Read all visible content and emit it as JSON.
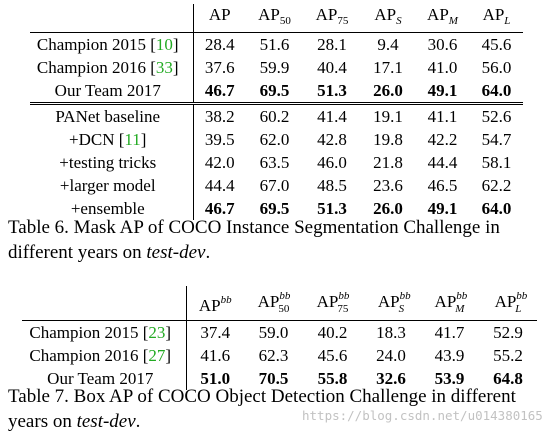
{
  "table6": {
    "columns": [
      "AP",
      "AP",
      "AP",
      "AP",
      "AP",
      "AP"
    ],
    "column_subscripts": [
      "",
      "50",
      "75",
      "S",
      "M",
      "L"
    ],
    "rows": [
      {
        "label": "Champion 2015 [",
        "ref": "10",
        "close": "]",
        "values": [
          "28.4",
          "51.6",
          "28.1",
          "9.4",
          "30.6",
          "45.6"
        ]
      },
      {
        "label": "Champion 2016 [",
        "ref": "33",
        "close": "]",
        "values": [
          "37.6",
          "59.9",
          "40.4",
          "17.1",
          "41.0",
          "56.0"
        ]
      },
      {
        "label": "Our Team 2017",
        "ref": "",
        "close": "",
        "values": [
          "46.7",
          "69.5",
          "51.3",
          "26.0",
          "49.1",
          "64.0"
        ]
      },
      {
        "label": "PANet baseline",
        "ref": "",
        "close": "",
        "values": [
          "38.2",
          "60.2",
          "41.4",
          "19.1",
          "41.1",
          "52.6"
        ]
      },
      {
        "label": "+DCN [",
        "ref": "11",
        "close": "]",
        "values": [
          "39.5",
          "62.0",
          "42.8",
          "19.8",
          "42.2",
          "54.7"
        ]
      },
      {
        "label": "+testing tricks",
        "ref": "",
        "close": "",
        "values": [
          "42.0",
          "63.5",
          "46.0",
          "21.8",
          "44.4",
          "58.1"
        ]
      },
      {
        "label": "+larger model",
        "ref": "",
        "close": "",
        "values": [
          "44.4",
          "67.0",
          "48.5",
          "23.6",
          "46.5",
          "62.2"
        ]
      },
      {
        "label": "+ensemble",
        "ref": "",
        "close": "",
        "values": [
          "46.7",
          "69.5",
          "51.3",
          "26.0",
          "49.1",
          "64.0"
        ]
      }
    ],
    "caption_main": "Table 6. Mask AP of COCO Instance Segmentation Challenge in different years on ",
    "caption_em": "test-dev",
    "caption_end": "."
  },
  "table7": {
    "columns": [
      "AP",
      "AP",
      "AP",
      "AP",
      "AP",
      "AP"
    ],
    "column_superscripts": [
      "bb",
      "bb",
      "bb",
      "bb",
      "bb",
      "bb"
    ],
    "column_subscripts": [
      "",
      "50",
      "75",
      "S",
      "M",
      "L"
    ],
    "rows": [
      {
        "label": "Champion 2015 [",
        "ref": "23",
        "close": "]",
        "values": [
          "37.4",
          "59.0",
          "40.2",
          "18.3",
          "41.7",
          "52.9"
        ]
      },
      {
        "label": "Champion 2016 [",
        "ref": "27",
        "close": "]",
        "values": [
          "41.6",
          "62.3",
          "45.6",
          "24.0",
          "43.9",
          "55.2"
        ]
      },
      {
        "label": "Our Team 2017",
        "ref": "",
        "close": "",
        "values": [
          "51.0",
          "70.5",
          "55.8",
          "32.6",
          "53.9",
          "64.8"
        ]
      }
    ],
    "caption_main": "Table 7. Box AP of COCO Object Detection Challenge in different years on ",
    "caption_em": "test-dev",
    "caption_end": "."
  },
  "watermark": "https://blog.csdn.net/u014380165",
  "colors": {
    "reference": "#22aa22",
    "watermark": "#c2c2c2"
  }
}
